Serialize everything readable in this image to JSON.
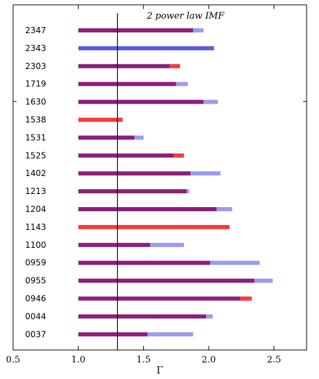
{
  "chart_data": {
    "type": "bar",
    "title": "2 power law IMF",
    "xlabel": "Γ",
    "ylabel": "",
    "xlim": [
      0.5,
      2.75
    ],
    "xticks": [
      0.5,
      1.0,
      1.5,
      2.0,
      2.5
    ],
    "xtick_labels": [
      "0.5",
      "1.0",
      "1.5",
      "2.0",
      "2.5"
    ],
    "reference_line_x": 1.3,
    "grid": false,
    "legend": "none",
    "colors": {
      "purple": "#8b1f7a",
      "light_blue": "#9b9bf0",
      "red": "#f53b3b",
      "blue": "#5b5be6",
      "reference": "#000000"
    },
    "categories": [
      "2347",
      "2343",
      "2303",
      "1719",
      "1630",
      "1538",
      "1531",
      "1525",
      "1402",
      "1213",
      "1204",
      "1143",
      "1100",
      "0959",
      "0955",
      "0946",
      "0044",
      "0037"
    ],
    "bars": [
      {
        "start": 1.0,
        "purple_end": 1.88,
        "ext_end": 1.96,
        "ext_color": "light_blue"
      },
      {
        "start": 1.0,
        "purple_end": 1.0,
        "ext_end": 2.04,
        "ext_color": "blue"
      },
      {
        "start": 1.0,
        "purple_end": 1.7,
        "ext_end": 1.78,
        "ext_color": "red"
      },
      {
        "start": 1.0,
        "purple_end": 1.75,
        "ext_end": 1.84,
        "ext_color": "light_blue"
      },
      {
        "start": 1.0,
        "purple_end": 1.96,
        "ext_end": 2.07,
        "ext_color": "light_blue"
      },
      {
        "start": 1.0,
        "purple_end": 1.0,
        "ext_end": 1.34,
        "ext_color": "red"
      },
      {
        "start": 1.0,
        "purple_end": 1.43,
        "ext_end": 1.5,
        "ext_color": "light_blue"
      },
      {
        "start": 1.0,
        "purple_end": 1.73,
        "ext_end": 1.81,
        "ext_color": "red"
      },
      {
        "start": 1.0,
        "purple_end": 1.86,
        "ext_end": 2.09,
        "ext_color": "light_blue"
      },
      {
        "start": 1.0,
        "purple_end": 1.83,
        "ext_end": 1.85,
        "ext_color": "light_blue"
      },
      {
        "start": 1.0,
        "purple_end": 2.06,
        "ext_end": 2.18,
        "ext_color": "light_blue"
      },
      {
        "start": 1.0,
        "purple_end": 1.0,
        "ext_end": 2.16,
        "ext_color": "red"
      },
      {
        "start": 1.0,
        "purple_end": 1.55,
        "ext_end": 1.81,
        "ext_color": "light_blue"
      },
      {
        "start": 1.0,
        "purple_end": 2.01,
        "ext_end": 2.39,
        "ext_color": "light_blue"
      },
      {
        "start": 1.0,
        "purple_end": 2.35,
        "ext_end": 2.49,
        "ext_color": "light_blue"
      },
      {
        "start": 1.0,
        "purple_end": 2.24,
        "ext_end": 2.33,
        "ext_color": "red"
      },
      {
        "start": 1.0,
        "purple_end": 1.98,
        "ext_end": 2.03,
        "ext_color": "light_blue"
      },
      {
        "start": 1.0,
        "purple_end": 1.53,
        "ext_end": 1.88,
        "ext_color": "light_blue"
      }
    ]
  }
}
